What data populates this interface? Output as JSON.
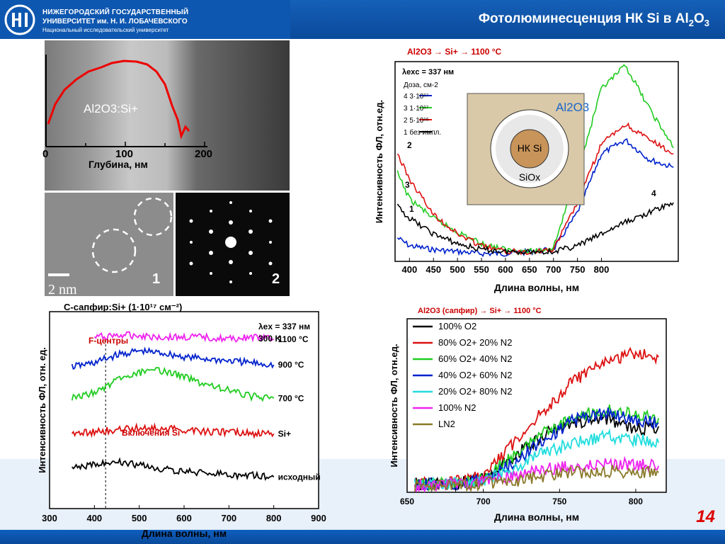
{
  "header": {
    "university_line1": "НИЖЕГОРОДСКИЙ ГОСУДАРСТВЕННЫЙ",
    "university_line2": "УНИВЕРСИТЕТ им. Н. И. ЛОБАЧЕВСКОГО",
    "university_line3": "Национальный исследовательский университет",
    "title": "Фотолюминесценция НК Si в Al",
    "title_sub1": "2",
    "title_mid": "O",
    "title_sub2": "3"
  },
  "page_number": "14",
  "tem": {
    "profile_label": "Al2O3:Si+",
    "x_ticks": [
      "0",
      "100",
      "200"
    ],
    "x_label": "Глубина, нм",
    "image1_label": "1",
    "image2_label": "2",
    "scale_label": "2 nm"
  },
  "colors": {
    "accent": "#0e57b0",
    "title_red": "#cc0000"
  },
  "chart_data": [
    {
      "type": "line",
      "title": "Al2O3 → Si+ → 1100 °C",
      "xlabel": "Длина волны, нм",
      "ylabel": "Интенсивность ФЛ, отн.ед.",
      "xlim": [
        370,
        960
      ],
      "x_ticks": [
        "400",
        "450",
        "500",
        "550",
        "600",
        "650",
        "700",
        "750",
        "800"
      ],
      "annotation": "λexc = 337 нм",
      "legend_title": "Доза, см-2",
      "legend": [
        "4  3·10¹⁷",
        "3  1·10¹⁷",
        "2  5·10¹⁶",
        "1  без импл."
      ],
      "inset": {
        "outer": "Al2O3",
        "core": "НК Si",
        "shell": "SiOx"
      },
      "series": [
        {
          "name": "3·10¹⁷",
          "color": "#0022cc",
          "x": [
            375,
            400,
            450,
            500,
            550,
            600,
            650,
            700,
            750,
            800,
            850,
            900,
            950
          ],
          "y": [
            0.12,
            0.08,
            0.06,
            0.05,
            0.04,
            0.04,
            0.05,
            0.06,
            0.25,
            0.55,
            0.62,
            0.52,
            0.48
          ]
        },
        {
          "name": "1·10¹⁷",
          "color": "#22cc22",
          "x": [
            375,
            400,
            450,
            500,
            550,
            600,
            650,
            700,
            750,
            800,
            850,
            900,
            950
          ],
          "y": [
            0.45,
            0.32,
            0.22,
            0.15,
            0.09,
            0.06,
            0.05,
            0.07,
            0.45,
            0.88,
            1.0,
            0.78,
            0.58
          ]
        },
        {
          "name": "5·10¹⁶",
          "color": "#dd1111",
          "x": [
            375,
            400,
            450,
            500,
            550,
            600,
            650,
            700,
            750,
            800,
            850,
            900,
            950
          ],
          "y": [
            0.55,
            0.42,
            0.24,
            0.14,
            0.08,
            0.05,
            0.05,
            0.06,
            0.3,
            0.6,
            0.7,
            0.62,
            0.55
          ]
        },
        {
          "name": "без импл.",
          "color": "#000000",
          "x": [
            375,
            400,
            450,
            500,
            550,
            600,
            650,
            700,
            750,
            800,
            850,
            900,
            950
          ],
          "y": [
            0.28,
            0.22,
            0.14,
            0.09,
            0.06,
            0.05,
            0.05,
            0.05,
            0.08,
            0.14,
            0.2,
            0.25,
            0.3
          ]
        }
      ],
      "curve_labels": [
        "1",
        "2",
        "3",
        "4"
      ]
    },
    {
      "type": "line",
      "title": "C-сапфир:Si+ (1·10¹⁷ см⁻²)",
      "xlabel": "Длина волны, нм",
      "ylabel": "Интенсивность ФЛ, отн. ед.",
      "xlim": [
        300,
        900
      ],
      "x_ticks": [
        "300",
        "400",
        "500",
        "600",
        "700",
        "800",
        "900"
      ],
      "annotations": [
        "λex = 337 нм",
        "300 K",
        "F-центры",
        "Включения Si"
      ],
      "series": [
        {
          "name": "1100 °C",
          "color": "#ee22ee",
          "x": [
            400,
            450,
            500,
            550,
            600,
            650,
            700,
            750,
            800
          ],
          "y": [
            0.87,
            0.88,
            0.88,
            0.87,
            0.87,
            0.87,
            0.86,
            0.87,
            0.86
          ]
        },
        {
          "name": "900 °C",
          "color": "#0022cc",
          "x": [
            350,
            400,
            450,
            500,
            550,
            600,
            650,
            700,
            750,
            800
          ],
          "y": [
            0.72,
            0.74,
            0.78,
            0.8,
            0.79,
            0.77,
            0.76,
            0.75,
            0.74,
            0.73
          ]
        },
        {
          "name": "700 °C",
          "color": "#22cc22",
          "x": [
            350,
            400,
            450,
            500,
            550,
            600,
            650,
            700,
            750,
            800
          ],
          "y": [
            0.56,
            0.59,
            0.65,
            0.69,
            0.7,
            0.67,
            0.63,
            0.6,
            0.57,
            0.56
          ]
        },
        {
          "name": "Si+",
          "color": "#dd1111",
          "x": [
            350,
            400,
            450,
            500,
            550,
            600,
            650,
            700,
            750,
            800
          ],
          "y": [
            0.38,
            0.39,
            0.4,
            0.41,
            0.41,
            0.4,
            0.39,
            0.39,
            0.38,
            0.38
          ]
        },
        {
          "name": "исходный",
          "color": "#000000",
          "x": [
            350,
            400,
            450,
            500,
            550,
            600,
            650,
            700,
            750,
            800
          ],
          "y": [
            0.2,
            0.23,
            0.24,
            0.22,
            0.2,
            0.19,
            0.18,
            0.17,
            0.17,
            0.16
          ]
        }
      ]
    },
    {
      "type": "line",
      "title": "Al2O3 (сапфир) → Si+ → 1100 °C",
      "xlabel": "Длина волны, нм",
      "ylabel": "Интенсивность ФЛ, отн.ед.",
      "xlim": [
        650,
        820
      ],
      "x_ticks": [
        "650",
        "700",
        "750",
        "800"
      ],
      "series": [
        {
          "name": "100% O2",
          "color": "#000000",
          "x": [
            655,
            680,
            700,
            720,
            740,
            760,
            780,
            800,
            815
          ],
          "y": [
            0.05,
            0.05,
            0.08,
            0.22,
            0.35,
            0.42,
            0.45,
            0.38,
            0.4
          ]
        },
        {
          "name": "80% O2+ 20% N2",
          "color": "#dd1111",
          "x": [
            655,
            680,
            700,
            720,
            740,
            760,
            780,
            800,
            815
          ],
          "y": [
            0.05,
            0.06,
            0.1,
            0.3,
            0.5,
            0.68,
            0.78,
            0.85,
            0.82
          ]
        },
        {
          "name": "60% O2+ 40% N2",
          "color": "#22cc22",
          "x": [
            655,
            680,
            700,
            720,
            740,
            760,
            780,
            800,
            815
          ],
          "y": [
            0.05,
            0.05,
            0.08,
            0.22,
            0.36,
            0.46,
            0.5,
            0.48,
            0.45
          ]
        },
        {
          "name": "40% O2+ 60% N2",
          "color": "#0022cc",
          "x": [
            655,
            680,
            700,
            720,
            740,
            760,
            780,
            800,
            815
          ],
          "y": [
            0.05,
            0.05,
            0.07,
            0.18,
            0.32,
            0.44,
            0.48,
            0.44,
            0.42
          ]
        },
        {
          "name": "20% O2+ 80% N2",
          "color": "#22dddd",
          "x": [
            655,
            680,
            700,
            720,
            740,
            760,
            780,
            800,
            815
          ],
          "y": [
            0.05,
            0.05,
            0.07,
            0.14,
            0.24,
            0.3,
            0.34,
            0.32,
            0.3
          ]
        },
        {
          "name": "100% N2",
          "color": "#ee22ee",
          "x": [
            655,
            680,
            700,
            720,
            740,
            760,
            780,
            800,
            815
          ],
          "y": [
            0.04,
            0.05,
            0.06,
            0.1,
            0.14,
            0.16,
            0.18,
            0.17,
            0.16
          ]
        },
        {
          "name": "LN2",
          "color": "#8a7a2a",
          "x": [
            655,
            680,
            700,
            720,
            740,
            760,
            780,
            800,
            815
          ],
          "y": [
            0.04,
            0.04,
            0.05,
            0.07,
            0.1,
            0.12,
            0.13,
            0.12,
            0.12
          ]
        }
      ]
    }
  ]
}
